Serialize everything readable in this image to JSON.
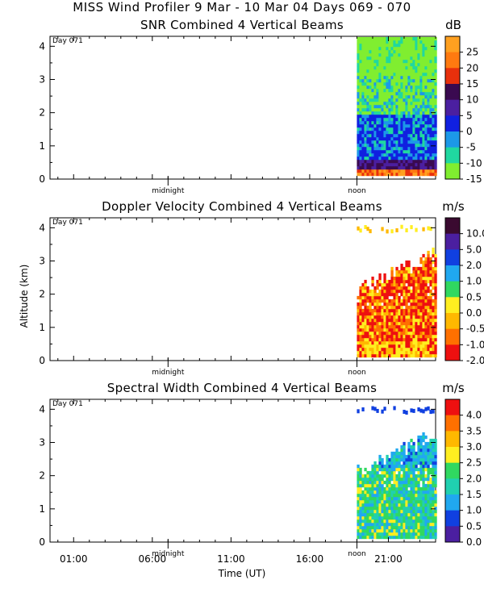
{
  "page_title": "MISS Wind Profiler   9 Mar - 10 Mar 04 Days 069 - 070",
  "x_axis": {
    "label": "Time (UT)",
    "tick_labels": [
      "01:00",
      "06:00",
      "11:00",
      "16:00",
      "21:00"
    ],
    "tick_hours": [
      1,
      6,
      11,
      16,
      21
    ],
    "range_hours": [
      -0.5,
      24
    ],
    "markers": [
      {
        "label": "midnight",
        "hour": 7
      },
      {
        "label": "noon",
        "hour": 19
      }
    ]
  },
  "y_axis_label": "Altitude (km)",
  "chart_data": [
    {
      "type": "heatmap",
      "title": "SNR Combined 4 Vertical Beams",
      "day_label": "Day 071",
      "unit": "dB",
      "ylim": [
        0,
        4.3
      ],
      "yticks": [
        "0",
        "1",
        "2",
        "3",
        "4"
      ],
      "colorbar_labels": [
        "25",
        "20",
        "15",
        "10",
        "5",
        "0",
        "-5",
        "-10",
        "-15"
      ],
      "colors": [
        "#ffa020",
        "#ff7a10",
        "#e8300c",
        "#3a0a50",
        "#4b1fa0",
        "#1020e0",
        "#1c98e8",
        "#20d8a0",
        "#80ee30"
      ],
      "data_hours": [
        19.0,
        24.0
      ],
      "data_altitude_km": [
        0.1,
        4.2
      ]
    },
    {
      "type": "heatmap",
      "title": "Doppler Velocity Combined 4 Vertical Beams",
      "day_label": "Day 071",
      "unit": "m/s",
      "ylim": [
        0,
        4.3
      ],
      "yticks": [
        "0",
        "1",
        "2",
        "3",
        "4"
      ],
      "colorbar_labels": [
        "10.0",
        "5.0",
        "2.0",
        "1.0",
        "0.5",
        "0.0",
        "-0.5",
        "-1.0",
        "-2.0"
      ],
      "colors": [
        "#3a0a30",
        "#4b1fa0",
        "#1040e0",
        "#20a8f0",
        "#30d860",
        "#ffee20",
        "#ffb800",
        "#ff7000",
        "#ee1010"
      ],
      "data_hours": [
        19.0,
        24.0
      ],
      "data_altitude_km": [
        0.1,
        4.2
      ]
    },
    {
      "type": "heatmap",
      "title": "Spectral Width Combined 4 Vertical Beams",
      "day_label": "Day 071",
      "unit": "m/s",
      "ylim": [
        0,
        4.3
      ],
      "yticks": [
        "0",
        "1",
        "2",
        "3",
        "4"
      ],
      "colorbar_labels": [
        "4.0",
        "3.5",
        "3.0",
        "2.5",
        "2.0",
        "1.5",
        "1.0",
        "0.5",
        "0.0"
      ],
      "colors": [
        "#ee1010",
        "#ff7000",
        "#ffb800",
        "#ffee20",
        "#30d860",
        "#20d0b0",
        "#20a8f0",
        "#1040e0",
        "#4b1fa0"
      ],
      "data_hours": [
        19.0,
        24.0
      ],
      "data_altitude_km": [
        0.1,
        4.2
      ]
    }
  ]
}
